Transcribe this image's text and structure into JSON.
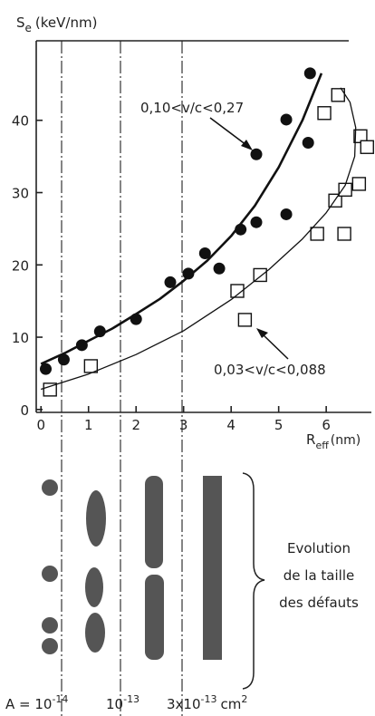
{
  "chart_data": {
    "type": "scatter",
    "y_label": {
      "symbol": "S",
      "subscript": "e",
      "unit": "(keV/nm)"
    },
    "x_label": {
      "symbol": "R",
      "subscript": "eff",
      "unit": "(nm)"
    },
    "xlim": [
      -0.1,
      6.95
    ],
    "ylim": [
      -0.4,
      51
    ],
    "xticks": [
      0,
      1,
      2,
      3,
      4,
      5,
      6
    ],
    "yticks": [
      0,
      10,
      20,
      30,
      40
    ],
    "annotations": [
      "0,10<v/c<0,27",
      "0,03<v/c<0,088"
    ],
    "series": [
      {
        "marker": "filled-circle",
        "color": "#111111",
        "x": [
          0.1,
          0.48,
          0.86,
          1.24,
          2.0,
          2.72,
          3.1,
          3.45,
          3.75,
          4.2,
          4.53,
          4.53,
          5.16,
          5.16,
          5.62,
          5.66
        ],
        "values": [
          5.6,
          6.9,
          8.9,
          10.8,
          12.5,
          17.6,
          18.8,
          21.6,
          19.5,
          24.9,
          25.9,
          35.3,
          40.1,
          27.0,
          36.9,
          46.5
        ]
      },
      {
        "marker": "open-square",
        "color": "#111111",
        "x": [
          0.19,
          1.05,
          4.13,
          4.61,
          4.29,
          5.81,
          5.96,
          6.25,
          6.19,
          6.4,
          6.38,
          6.69,
          6.72,
          6.86
        ],
        "values": [
          2.75,
          6.0,
          16.4,
          18.6,
          12.4,
          24.3,
          41.0,
          43.5,
          28.9,
          30.4,
          24.3,
          31.2,
          37.8,
          36.3
        ]
      },
      {
        "marker": "line",
        "width": 2.6,
        "color": "#111111",
        "x": [
          0,
          0.5,
          1,
          1.5,
          2,
          2.5,
          3,
          3.5,
          4,
          4.5,
          5,
          5.5,
          5.9
        ],
        "values": [
          6.3,
          7.8,
          9.5,
          11.2,
          13.2,
          15.3,
          17.8,
          20.6,
          24.0,
          28.2,
          33.5,
          40.0,
          46.5
        ]
      },
      {
        "marker": "line",
        "width": 1.3,
        "color": "#111111",
        "x": [
          0,
          1,
          2,
          3,
          4,
          4.8,
          5.5,
          6.0,
          6.4,
          6.6,
          6.62,
          6.5,
          6.3
        ],
        "values": [
          2.8,
          4.9,
          7.6,
          10.9,
          15.2,
          19.4,
          23.6,
          27.2,
          31.0,
          35.0,
          39.0,
          42.5,
          44.5
        ]
      }
    ]
  },
  "schematic": {
    "label_lines": [
      "Evolution",
      "de la taille",
      "des défauts"
    ],
    "area_labels": [
      {
        "base": "A = 10",
        "exp": "-14"
      },
      {
        "base": "10",
        "exp": "-13"
      },
      {
        "base": "3x10",
        "exp": "-13",
        "unit": "cm",
        "unit_exp": "2"
      }
    ]
  }
}
